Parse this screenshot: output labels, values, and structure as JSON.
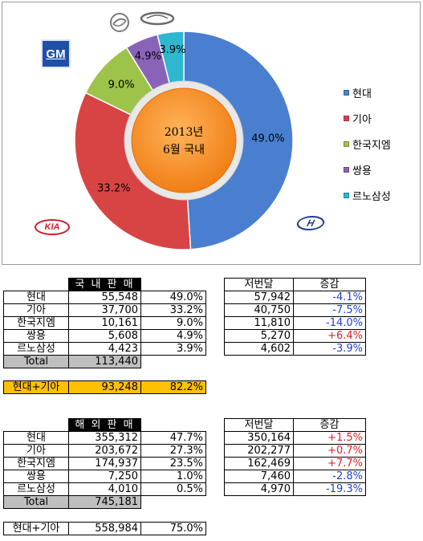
{
  "chart_data": {
    "type": "pie",
    "center_label_line1": "2013년",
    "center_label_line2": "6월 국내",
    "legend_position": "right",
    "slices": [
      {
        "name": "현대",
        "value": 49.0,
        "label": "49.0%",
        "color": "#4a7fd0"
      },
      {
        "name": "기아",
        "value": 33.2,
        "label": "33.2%",
        "color": "#d84444"
      },
      {
        "name": "한국지엠",
        "value": 9.0,
        "label": "9.0%",
        "color": "#9ec34a"
      },
      {
        "name": "쌍용",
        "value": 4.9,
        "label": "4.9%",
        "color": "#8a63b8"
      },
      {
        "name": "르노삼성",
        "value": 3.9,
        "label": "3.9%",
        "color": "#2fb7d0"
      }
    ]
  },
  "logos": {
    "gm": "GM",
    "kia": "KIA",
    "hyundai": "H"
  },
  "domestic": {
    "title": "국 내 판 매",
    "prev_header": "저번달",
    "change_header": "증감",
    "rows": [
      {
        "brand": "현대",
        "sales": "55,548",
        "share": "49.0%",
        "prev": "57,942",
        "change": "-4.1%",
        "dir": "neg"
      },
      {
        "brand": "기아",
        "sales": "37,700",
        "share": "33.2%",
        "prev": "40,750",
        "change": "-7.5%",
        "dir": "neg"
      },
      {
        "brand": "한국지엠",
        "sales": "10,161",
        "share": "9.0%",
        "prev": "11,810",
        "change": "-14.0%",
        "dir": "neg"
      },
      {
        "brand": "쌍용",
        "sales": "5,608",
        "share": "4.9%",
        "prev": "5,270",
        "change": "+6.4%",
        "dir": "pos"
      },
      {
        "brand": "르노삼성",
        "sales": "4,423",
        "share": "3.9%",
        "prev": "4,602",
        "change": "-3.9%",
        "dir": "neg"
      }
    ],
    "total_label": "Total",
    "total_value": "113,440",
    "combo_label": "현대+기아",
    "combo_value": "93,248",
    "combo_share": "82.2%"
  },
  "overseas": {
    "title": "해 외 판 매",
    "prev_header": "저번달",
    "change_header": "증감",
    "rows": [
      {
        "brand": "현대",
        "sales": "355,312",
        "share": "47.7%",
        "prev": "350,164",
        "change": "+1.5%",
        "dir": "pos"
      },
      {
        "brand": "기아",
        "sales": "203,672",
        "share": "27.3%",
        "prev": "202,277",
        "change": "+0.7%",
        "dir": "pos"
      },
      {
        "brand": "한국지엠",
        "sales": "174,937",
        "share": "23.5%",
        "prev": "162,469",
        "change": "+7.7%",
        "dir": "pos"
      },
      {
        "brand": "쌍용",
        "sales": "7,250",
        "share": "1.0%",
        "prev": "7,460",
        "change": "-2.8%",
        "dir": "neg"
      },
      {
        "brand": "르노삼성",
        "sales": "4,010",
        "share": "0.5%",
        "prev": "4,970",
        "change": "-19.3%",
        "dir": "neg"
      }
    ],
    "total_label": "Total",
    "total_value": "745,181",
    "combo_label": "현대+기아",
    "combo_value": "558,984",
    "combo_share": "75.0%"
  }
}
